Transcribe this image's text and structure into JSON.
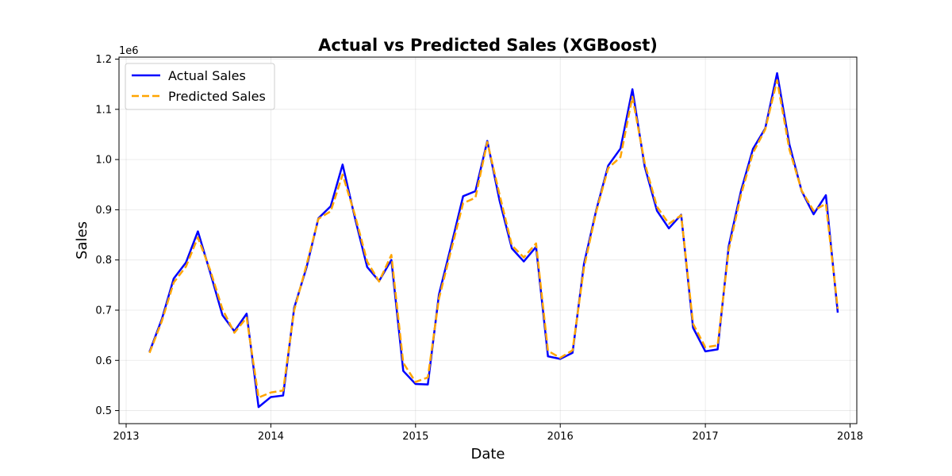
{
  "chart_data": {
    "type": "line",
    "title": "Actual vs Predicted Sales (XGBoost)",
    "xlabel": "Date",
    "ylabel": "Sales",
    "y_offset_label": "1e6",
    "x_tick_labels": [
      "2013",
      "2014",
      "2015",
      "2016",
      "2017",
      "2018"
    ],
    "x_range": [
      "2012-12-14",
      "2018-01-18"
    ],
    "y_ticks": [
      0.5,
      0.6,
      0.7,
      0.8,
      0.9,
      1.0,
      1.1,
      1.2
    ],
    "y_tick_labels": [
      "0.5",
      "0.6",
      "0.7",
      "0.8",
      "0.9",
      "1.0",
      "1.1",
      "1.2"
    ],
    "ylim": [
      0.474,
      1.204
    ],
    "y_scale_note": "values in units of 1e6",
    "grid": true,
    "legend_position": "top-left",
    "x": [
      "2013-03-01",
      "2013-04-01",
      "2013-05-01",
      "2013-06-01",
      "2013-07-01",
      "2013-08-01",
      "2013-09-01",
      "2013-10-01",
      "2013-11-01",
      "2013-12-01",
      "2014-01-01",
      "2014-02-01",
      "2014-03-01",
      "2014-04-01",
      "2014-05-01",
      "2014-06-01",
      "2014-07-01",
      "2014-08-01",
      "2014-09-01",
      "2014-10-01",
      "2014-11-01",
      "2014-12-01",
      "2015-01-01",
      "2015-02-01",
      "2015-03-01",
      "2015-04-01",
      "2015-05-01",
      "2015-06-01",
      "2015-07-01",
      "2015-08-01",
      "2015-09-01",
      "2015-10-01",
      "2015-11-01",
      "2015-12-01",
      "2016-01-01",
      "2016-02-01",
      "2016-03-01",
      "2016-04-01",
      "2016-05-01",
      "2016-06-01",
      "2016-07-01",
      "2016-08-01",
      "2016-09-01",
      "2016-10-01",
      "2016-11-01",
      "2016-12-01",
      "2017-01-01",
      "2017-02-01",
      "2017-03-01",
      "2017-04-01",
      "2017-05-01",
      "2017-06-01",
      "2017-07-01",
      "2017-08-01",
      "2017-09-01",
      "2017-10-01",
      "2017-11-01",
      "2017-12-01"
    ],
    "series": [
      {
        "name": "Actual Sales",
        "color": "#0000ff",
        "style": "solid",
        "values": [
          0.617,
          0.682,
          0.763,
          0.795,
          0.857,
          0.775,
          0.69,
          0.658,
          0.693,
          0.507,
          0.527,
          0.53,
          0.705,
          0.785,
          0.883,
          0.907,
          0.99,
          0.884,
          0.786,
          0.758,
          0.8,
          0.579,
          0.553,
          0.552,
          0.731,
          0.829,
          0.927,
          0.937,
          1.037,
          0.918,
          0.823,
          0.797,
          0.826,
          0.608,
          0.603,
          0.615,
          0.793,
          0.9,
          0.988,
          1.022,
          1.14,
          0.986,
          0.898,
          0.863,
          0.89,
          0.665,
          0.618,
          0.622,
          0.828,
          0.938,
          1.021,
          1.062,
          1.172,
          1.03,
          0.937,
          0.891,
          0.929,
          0.695
        ]
      },
      {
        "name": "Predicted Sales",
        "color": "#ffa500",
        "style": "dashed",
        "values": [
          0.615,
          0.678,
          0.755,
          0.787,
          0.845,
          0.78,
          0.702,
          0.655,
          0.685,
          0.526,
          0.536,
          0.54,
          0.7,
          0.79,
          0.882,
          0.897,
          0.97,
          0.89,
          0.797,
          0.757,
          0.81,
          0.595,
          0.557,
          0.566,
          0.723,
          0.82,
          0.913,
          0.924,
          1.035,
          0.93,
          0.829,
          0.805,
          0.833,
          0.619,
          0.605,
          0.62,
          0.785,
          0.897,
          0.983,
          1.005,
          1.125,
          0.993,
          0.906,
          0.872,
          0.889,
          0.673,
          0.626,
          0.63,
          0.82,
          0.93,
          1.013,
          1.06,
          1.158,
          1.02,
          0.938,
          0.898,
          0.912,
          0.703
        ]
      }
    ]
  }
}
